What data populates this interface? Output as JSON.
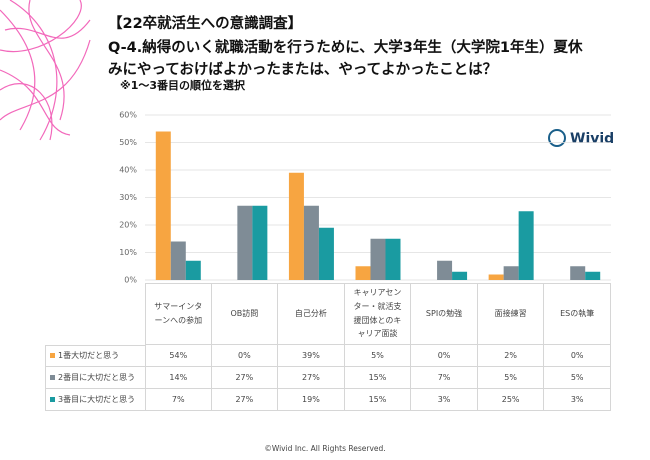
{
  "logo": "Wivid",
  "footer": "©Wivid Inc. All Rights Reserved.",
  "chart_data": {
    "type": "bar",
    "title_lines": [
      "【22卒就活生への意識調査】",
      "Q-4.納得のいく就職活動を行うために、大学3年生（大学院1年生）夏休",
      "みにやっておけばよかったまたは、やってよかったことは？"
    ],
    "subtitle": "※1〜3番目の順位を選択",
    "categories": [
      "サマーインターンへの参加",
      "OB訪問",
      "自己分析",
      "キャリアセンター・就活支援団体とのキャリア面談",
      "SPIの勉強",
      "面接練習",
      "ESの執筆"
    ],
    "series": [
      {
        "name": "1番大切だと思う",
        "color": "#f7a541",
        "values": [
          54,
          0,
          39,
          5,
          0,
          2,
          0
        ],
        "value_labels": [
          "54%",
          "0%",
          "39%",
          "5%",
          "0%",
          "2%",
          "0%"
        ]
      },
      {
        "name": "2番目に大切だと思う",
        "color": "#7f8c96",
        "values": [
          14,
          27,
          27,
          15,
          7,
          5,
          5
        ],
        "value_labels": [
          "14%",
          "27%",
          "27%",
          "15%",
          "7%",
          "5%",
          "5%"
        ]
      },
      {
        "name": "3番目に大切だと思う",
        "color": "#1a9ba1",
        "values": [
          7,
          27,
          19,
          15,
          3,
          25,
          3
        ],
        "value_labels": [
          "7%",
          "27%",
          "19%",
          "15%",
          "3%",
          "25%",
          "3%"
        ]
      }
    ],
    "ylim": [
      0,
      60
    ],
    "yticks": [
      {
        "value": 0,
        "label": "0%"
      },
      {
        "value": 10,
        "label": "10%"
      },
      {
        "value": 20,
        "label": "20%"
      },
      {
        "value": 30,
        "label": "30%"
      },
      {
        "value": 40,
        "label": "40%"
      },
      {
        "value": 50,
        "label": "50%"
      },
      {
        "value": 60,
        "label": "60%"
      }
    ],
    "grid": true
  }
}
